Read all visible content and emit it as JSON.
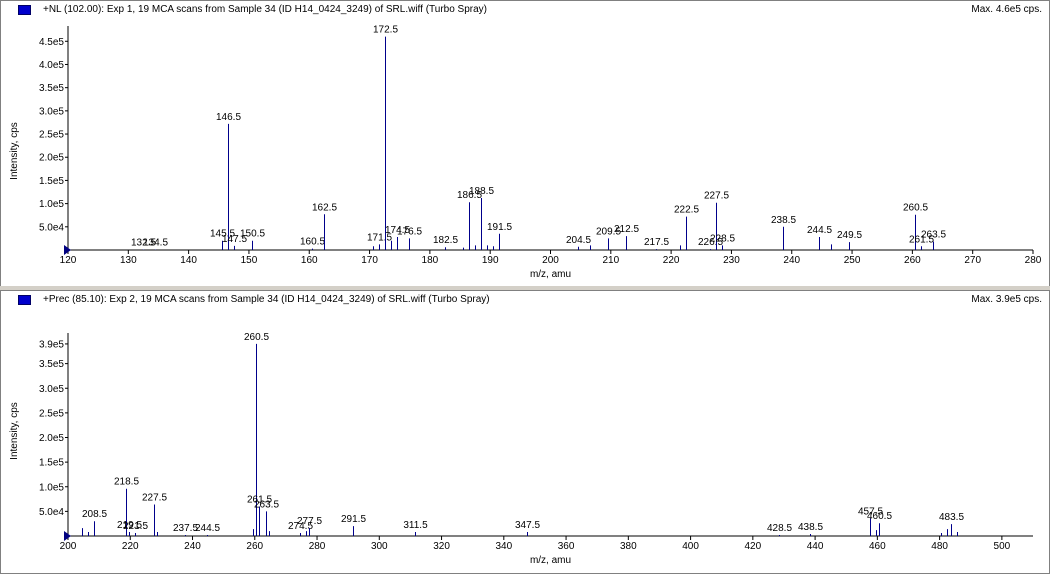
{
  "panels": [
    {
      "title": "+NL (102.00): Exp 1, 19 MCA scans from Sample 34 (ID H14_0424_3249) of SRL.wiff (Turbo Spray)",
      "max_label": "Max. 4.6e5 cps."
    },
    {
      "title": "+Prec (85.10): Exp 2, 19 MCA scans from Sample 34 (ID H14_0424_3249) of SRL.wiff (Turbo Spray)",
      "max_label": "Max. 3.9e5 cps."
    }
  ],
  "chart_data": [
    {
      "type": "bar",
      "xlabel": "m/z, amu",
      "ylabel": "Intensity, cps",
      "xlim": [
        120,
        280
      ],
      "ylim": [
        0,
        470000.0
      ],
      "xticks": [
        120,
        130,
        140,
        150,
        160,
        170,
        180,
        190,
        200,
        210,
        220,
        230,
        240,
        250,
        260,
        270,
        280
      ],
      "yticks": [
        {
          "value": 50000,
          "label": "5.0e4"
        },
        {
          "value": 100000,
          "label": "1.0e5"
        },
        {
          "value": 150000,
          "label": "1.5e5"
        },
        {
          "value": 200000,
          "label": "2.0e5"
        },
        {
          "value": 250000,
          "label": "2.5e5"
        },
        {
          "value": 300000,
          "label": "3.0e5"
        },
        {
          "value": 350000,
          "label": "3.5e5"
        },
        {
          "value": 400000,
          "label": "4.0e5"
        },
        {
          "value": 450000,
          "label": "4.5e5"
        }
      ],
      "peaks": [
        {
          "x": 132.5,
          "y": 1000,
          "label": "132.5"
        },
        {
          "x": 134.5,
          "y": 1000,
          "label": "134.5"
        },
        {
          "x": 145.5,
          "y": 20000,
          "label": "145.5"
        },
        {
          "x": 146.5,
          "y": 272000,
          "label": "146.5"
        },
        {
          "x": 147.5,
          "y": 9000,
          "label": "147.5"
        },
        {
          "x": 150.5,
          "y": 20000,
          "label": "150.5"
        },
        {
          "x": 160.5,
          "y": 3000,
          "label": "160.5"
        },
        {
          "x": 162.5,
          "y": 77000,
          "label": "162.5"
        },
        {
          "x": 170.5,
          "y": 8000
        },
        {
          "x": 171.5,
          "y": 12000,
          "label": "171.5"
        },
        {
          "x": 172.5,
          "y": 460000,
          "label": "172.5"
        },
        {
          "x": 173.5,
          "y": 20000
        },
        {
          "x": 174.5,
          "y": 28000,
          "label": "174.5"
        },
        {
          "x": 176.5,
          "y": 25000,
          "label": "176.5"
        },
        {
          "x": 182.5,
          "y": 6000,
          "label": "182.5"
        },
        {
          "x": 185.5,
          "y": 5000
        },
        {
          "x": 186.5,
          "y": 103000,
          "label": "186.5"
        },
        {
          "x": 187.5,
          "y": 10000
        },
        {
          "x": 188.5,
          "y": 112000,
          "label": "188.5"
        },
        {
          "x": 189.5,
          "y": 10000
        },
        {
          "x": 190.5,
          "y": 8000
        },
        {
          "x": 191.5,
          "y": 35000,
          "label": "191.5"
        },
        {
          "x": 204.5,
          "y": 7000,
          "label": "204.5"
        },
        {
          "x": 206.5,
          "y": 10000
        },
        {
          "x": 209.5,
          "y": 25000,
          "label": "209.5"
        },
        {
          "x": 212.5,
          "y": 30000,
          "label": "212.5"
        },
        {
          "x": 217.5,
          "y": 2000,
          "label": "217.5"
        },
        {
          "x": 221.5,
          "y": 10000
        },
        {
          "x": 222.5,
          "y": 72000,
          "label": "222.5"
        },
        {
          "x": 226.5,
          "y": 2000,
          "label": "226.5"
        },
        {
          "x": 227.5,
          "y": 102000,
          "label": "227.5"
        },
        {
          "x": 228.5,
          "y": 10000,
          "label": "228.5"
        },
        {
          "x": 238.5,
          "y": 50000,
          "label": "238.5"
        },
        {
          "x": 244.5,
          "y": 28000,
          "label": "244.5"
        },
        {
          "x": 246.5,
          "y": 12000
        },
        {
          "x": 249.5,
          "y": 17000,
          "label": "249.5"
        },
        {
          "x": 260.5,
          "y": 76000,
          "label": "260.5"
        },
        {
          "x": 261.5,
          "y": 8000,
          "label": "261.5"
        },
        {
          "x": 263.5,
          "y": 18000,
          "label": "263.5"
        }
      ]
    },
    {
      "type": "bar",
      "xlabel": "m/z, amu",
      "ylabel": "Intensity, cps",
      "xlim": [
        200,
        510
      ],
      "ylim": [
        0,
        400000.0
      ],
      "xticks": [
        200,
        220,
        240,
        260,
        280,
        300,
        320,
        340,
        360,
        380,
        400,
        420,
        440,
        460,
        480,
        500
      ],
      "yticks": [
        {
          "value": 50000,
          "label": "5.0e4"
        },
        {
          "value": 100000,
          "label": "1.0e5"
        },
        {
          "value": 150000,
          "label": "1.5e5"
        },
        {
          "value": 200000,
          "label": "2.0e5"
        },
        {
          "value": 250000,
          "label": "2.5e5"
        },
        {
          "value": 300000,
          "label": "3.0e5"
        },
        {
          "value": 350000,
          "label": "3.5e5"
        },
        {
          "value": 390000,
          "label": "3.9e5"
        }
      ],
      "peaks": [
        {
          "x": 204.5,
          "y": 16000
        },
        {
          "x": 206.5,
          "y": 8000
        },
        {
          "x": 208.5,
          "y": 30000,
          "label": "208.5"
        },
        {
          "x": 218.5,
          "y": 96000,
          "label": "218.5"
        },
        {
          "x": 219.5,
          "y": 8000,
          "label": "219.5"
        },
        {
          "x": 221.5,
          "y": 6000,
          "label": "221.5"
        },
        {
          "x": 227.5,
          "y": 64000,
          "label": "227.5"
        },
        {
          "x": 228.5,
          "y": 8000
        },
        {
          "x": 237.5,
          "y": 2000,
          "label": "237.5"
        },
        {
          "x": 244.5,
          "y": 2000,
          "label": "244.5"
        },
        {
          "x": 259.5,
          "y": 14000
        },
        {
          "x": 260.5,
          "y": 390000,
          "label": "260.5"
        },
        {
          "x": 261.5,
          "y": 60000,
          "label": "261.5"
        },
        {
          "x": 263.5,
          "y": 50000,
          "label": "263.5"
        },
        {
          "x": 264.5,
          "y": 10000
        },
        {
          "x": 274.5,
          "y": 6000,
          "label": "274.5"
        },
        {
          "x": 276.5,
          "y": 10000
        },
        {
          "x": 277.5,
          "y": 16000,
          "label": "277.5"
        },
        {
          "x": 291.5,
          "y": 20000,
          "label": "291.5"
        },
        {
          "x": 311.5,
          "y": 8000,
          "label": "311.5"
        },
        {
          "x": 347.5,
          "y": 8000,
          "label": "347.5"
        },
        {
          "x": 428.5,
          "y": 2000,
          "label": "428.5"
        },
        {
          "x": 438.5,
          "y": 4000,
          "label": "438.5"
        },
        {
          "x": 457.5,
          "y": 36000,
          "label": "457.5"
        },
        {
          "x": 459.5,
          "y": 12000
        },
        {
          "x": 460.5,
          "y": 26000,
          "label": "460.5"
        },
        {
          "x": 480.5,
          "y": 6000
        },
        {
          "x": 482.5,
          "y": 14000
        },
        {
          "x": 483.5,
          "y": 24000,
          "label": "483.5"
        },
        {
          "x": 485.5,
          "y": 8000
        }
      ]
    }
  ]
}
